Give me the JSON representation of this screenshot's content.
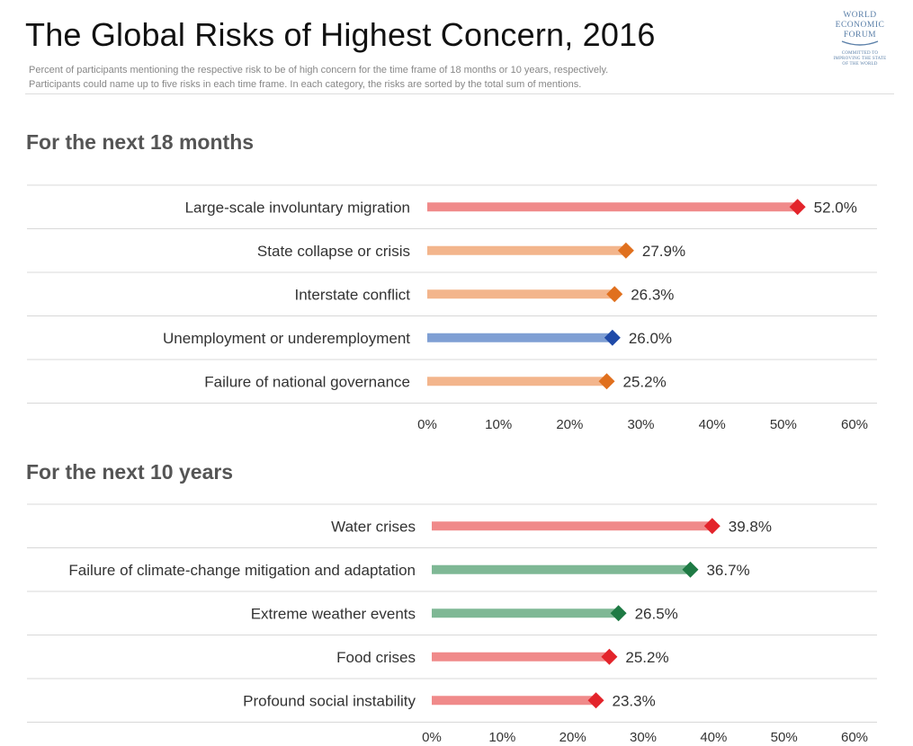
{
  "title": "The Global Risks of Highest Concern, 2016",
  "subtitle": {
    "line1": "Percent of participants mentioning the respective risk to be of high concern for the time frame of 18 months or 10 years, respectively.",
    "line2": "Participants could name up to five risks in each time frame. In each category, the risks are sorted by the total sum of mentions."
  },
  "logo": {
    "line1": "WORLD",
    "line2": "ECONOMIC",
    "line3": "FORUM",
    "tagline": "COMMITTED TO IMPROVING THE STATE OF THE WORLD"
  },
  "colors": {
    "economic_bar": "#7f9fd4",
    "economic_marker": "#1f4aa8",
    "geopolitical_bar": "#f3b58c",
    "geopolitical_marker": "#e0701e",
    "societal_bar": "#f08a8a",
    "societal_marker": "#e3242b",
    "environmental_bar": "#7fb895",
    "environmental_marker": "#1e7a44"
  },
  "chart_data": [
    {
      "type": "bar",
      "title": "For the next 18 months",
      "categories": [
        "Large-scale involuntary migration",
        "State collapse or crisis",
        "Interstate conflict",
        "Unemployment or underemployment",
        "Failure of national governance"
      ],
      "values": [
        52.0,
        27.9,
        26.3,
        26.0,
        25.2
      ],
      "value_labels": [
        "52.0%",
        "27.9%",
        "26.3%",
        "26.0%",
        "25.2%"
      ],
      "risk_category": [
        "societal",
        "geopolitical",
        "geopolitical",
        "economic",
        "geopolitical"
      ],
      "xlim": [
        0,
        60
      ],
      "ticks": [
        0,
        10,
        20,
        30,
        40,
        50,
        60
      ],
      "tick_labels": [
        "0%",
        "10%",
        "20%",
        "30%",
        "40%",
        "50%",
        "60%"
      ],
      "xlabel": "",
      "ylabel": ""
    },
    {
      "type": "bar",
      "title": "For the next 10 years",
      "categories": [
        "Water crises",
        "Failure of climate-change mitigation and adaptation",
        "Extreme weather events",
        "Food crises",
        "Profound social instability"
      ],
      "values": [
        39.8,
        36.7,
        26.5,
        25.2,
        23.3
      ],
      "value_labels": [
        "39.8%",
        "36.7%",
        "26.5%",
        "25.2%",
        "23.3%"
      ],
      "risk_category": [
        "societal",
        "environmental",
        "environmental",
        "societal",
        "societal"
      ],
      "xlim": [
        0,
        60
      ],
      "ticks": [
        0,
        10,
        20,
        30,
        40,
        50,
        60
      ],
      "tick_labels": [
        "0%",
        "10%",
        "20%",
        "30%",
        "40%",
        "50%",
        "60%"
      ],
      "xlabel": "",
      "ylabel": ""
    }
  ]
}
